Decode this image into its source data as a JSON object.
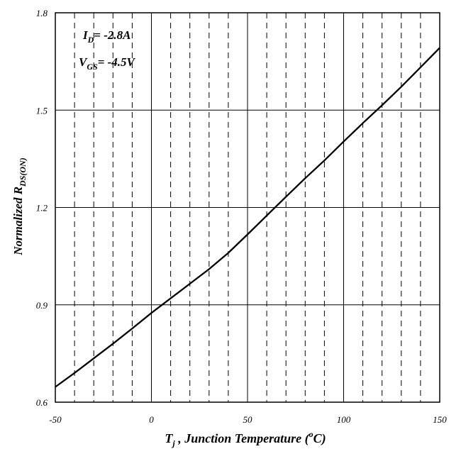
{
  "chart_data": {
    "type": "line",
    "xlabel": {
      "main": "T",
      "sub": "j",
      "text": " , Junction Temperature (",
      "sup": "o",
      "unit": "C)"
    },
    "ylabel": {
      "main": "Normalized R",
      "sub": "DS(ON)"
    },
    "xlim": [
      -50,
      150
    ],
    "ylim": [
      0.6,
      1.8
    ],
    "xticks": [
      "-50",
      "0",
      "50",
      "100",
      "150"
    ],
    "yticks": [
      "0.6",
      "0.9",
      "1.2",
      "1.5",
      "1.8"
    ],
    "grid": true,
    "annotations": [
      {
        "main": "I",
        "sub": "D",
        "text": "= -2.8A"
      },
      {
        "main": "V",
        "sub": "GS",
        "text": "= -4.5V"
      }
    ],
    "series": [
      {
        "x": [
          -50,
          -40,
          -30,
          -20,
          -10,
          0,
          10,
          20,
          30,
          40,
          50,
          60,
          70,
          80,
          90,
          100,
          110,
          120,
          130,
          140,
          150
        ],
        "y": [
          0.647,
          0.69,
          0.735,
          0.78,
          0.827,
          0.875,
          0.92,
          0.965,
          1.01,
          1.06,
          1.117,
          1.175,
          1.233,
          1.29,
          1.345,
          1.403,
          1.46,
          1.515,
          1.572,
          1.632,
          1.692
        ]
      }
    ]
  }
}
